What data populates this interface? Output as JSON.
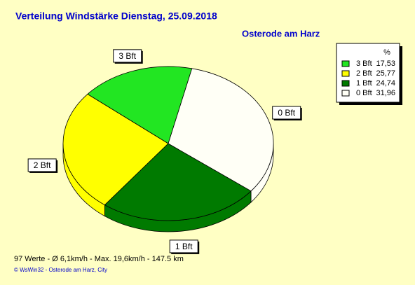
{
  "chart_data": {
    "type": "pie",
    "title": "Verteilung Windstärke  Dienstag, 25.09.2018",
    "subtitle": "Osterode am Harz",
    "legend_header": "%",
    "categories": [
      "3 Bft",
      "2 Bft",
      "1 Bft",
      "0 Bft"
    ],
    "values": [
      17.53,
      25.77,
      24.74,
      31.96
    ],
    "value_labels": [
      "17,53",
      "25,77",
      "24,74",
      "31,96"
    ],
    "colors": [
      "#22e622",
      "#ffff00",
      "#007a00",
      "#fffff6"
    ],
    "footer": "97 Werte   -   Ø 6,1km/h  -  Max. 19,6km/h   -   147.5 km",
    "copyright": "© WsWin32  -  Osterode am Harz, City"
  }
}
